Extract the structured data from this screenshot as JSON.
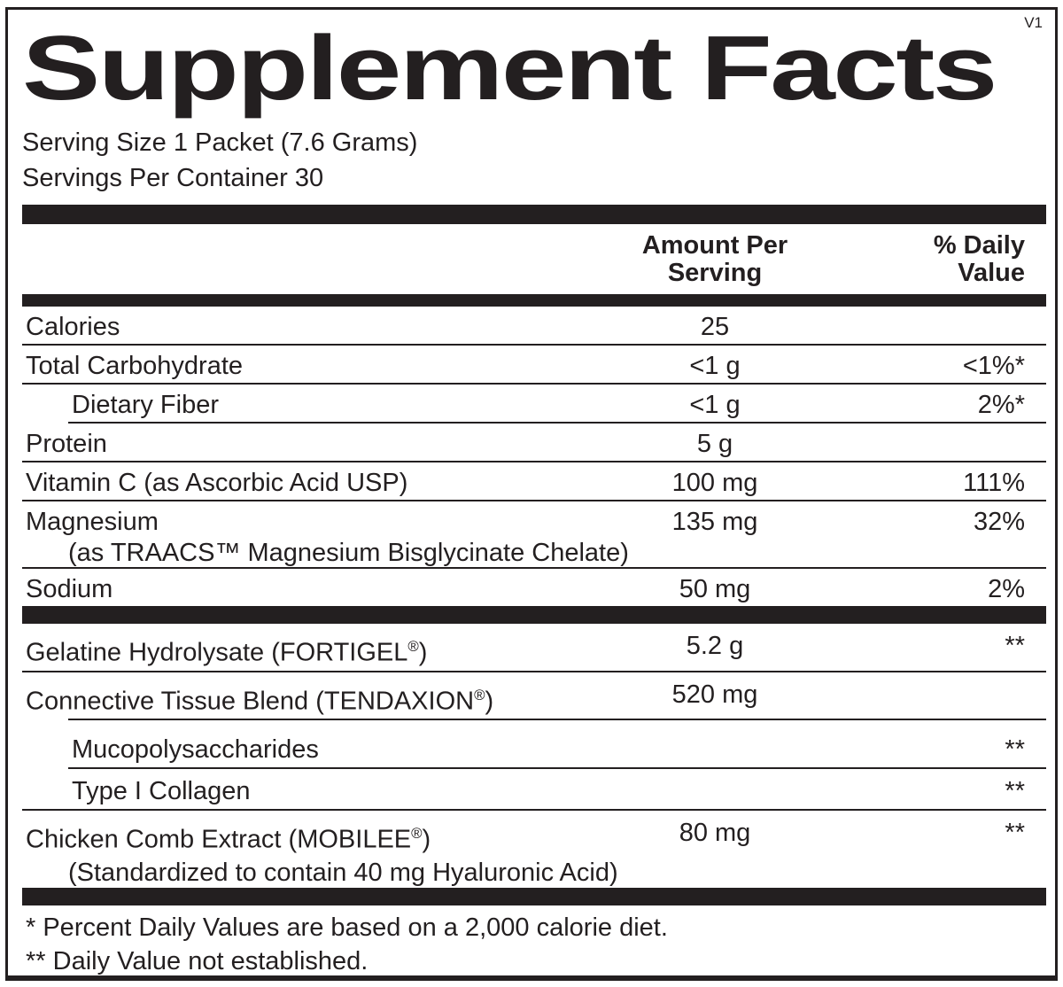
{
  "version": "V1",
  "title": "Supplement Facts",
  "serving": {
    "size": "Serving Size 1 Packet (7.6 Grams)",
    "per_container": "Servings Per Container 30"
  },
  "columns": {
    "amount_line1": "Amount Per",
    "amount_line2": "Serving",
    "dv_line1": "% Daily",
    "dv_line2": "Value"
  },
  "rows": [
    {
      "name": "Calories",
      "amount": "25",
      "dv": ""
    },
    {
      "name": "Total Carbohydrate",
      "amount": "<1 g",
      "dv": "<1%*"
    },
    {
      "name": "Dietary Fiber",
      "amount": "<1 g",
      "dv": "2%*"
    },
    {
      "name": "Protein",
      "amount": "5 g",
      "dv": ""
    },
    {
      "name": "Vitamin C (as Ascorbic Acid USP)",
      "amount": "100 mg",
      "dv": "111%"
    },
    {
      "name": "Magnesium",
      "name_line2": "(as TRAACS™ Magnesium Bisglycinate Chelate)",
      "amount": "135 mg",
      "dv": "32%"
    },
    {
      "name": "Sodium",
      "amount": "50 mg",
      "dv": "2%"
    },
    {
      "name_pre": "Gelatine Hydrolysate (FORTIGEL",
      "name_sup": "®",
      "name_post": ")",
      "amount": "5.2 g",
      "dv": "**"
    },
    {
      "name_pre": "Connective Tissue Blend (TENDAXION",
      "name_sup": "®",
      "name_post": ")",
      "amount": "520 mg",
      "dv": ""
    },
    {
      "name": "Mucopolysaccharides",
      "amount": "",
      "dv": "**"
    },
    {
      "name": "Type I Collagen",
      "amount": "",
      "dv": "**"
    },
    {
      "name_pre": "Chicken Comb Extract (MOBILEE",
      "name_sup": "®",
      "name_post": ")",
      "name_line2": "(Standardized to contain 40 mg Hyaluronic Acid)",
      "amount": "80 mg",
      "dv": "**"
    }
  ],
  "footnotes": [
    "* Percent Daily Values are based on a 2,000 calorie diet.",
    "** Daily Value not established."
  ],
  "colors": {
    "ink": "#231f20",
    "background": "#ffffff"
  }
}
